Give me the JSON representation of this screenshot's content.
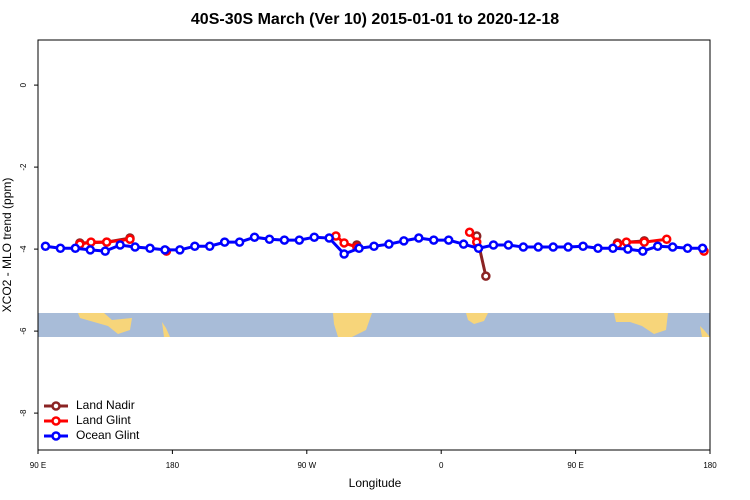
{
  "chart_data": {
    "type": "line",
    "title": "40S-30S March (Ver 10)   2015-01-01 to 2020-12-18",
    "xlabel": "Longitude",
    "ylabel": "XCO2 - MLO trend (ppm)",
    "xlim": [
      90,
      540
    ],
    "xticks": [
      {
        "value": 90,
        "label": "90 E"
      },
      {
        "value": 180,
        "label": "180"
      },
      {
        "value": 270,
        "label": "90 W"
      },
      {
        "value": 360,
        "label": "0"
      },
      {
        "value": 450,
        "label": "90 E"
      },
      {
        "value": 540,
        "label": "180"
      }
    ],
    "ylim": [
      -8.9,
      1.1
    ],
    "yticks": [
      0,
      -2,
      -4,
      -6,
      -8
    ],
    "legend": "bottom-left",
    "series": [
      {
        "name": "Land Nadir",
        "color": "#8b2323",
        "x": [
          118,
          136,
          151.6,
          null,
          303.5,
          null,
          383.8,
          389.9,
          null,
          478,
          496
        ],
        "values": [
          -3.85,
          -3.83,
          -3.73,
          null,
          -3.9,
          null,
          -3.68,
          -4.66,
          null,
          -3.85,
          -3.8
        ]
      },
      {
        "name": "Land Glint",
        "color": "#ff0000",
        "x": [
          118,
          125.5,
          136,
          151.6,
          null,
          176,
          null,
          289.5,
          295,
          303.5,
          null,
          379,
          383.8,
          null,
          478,
          484,
          496,
          511,
          null,
          536
        ],
        "values": [
          -3.88,
          -3.83,
          -3.83,
          -3.76,
          null,
          -4.05,
          null,
          -3.68,
          -3.85,
          -3.95,
          null,
          -3.59,
          -3.83,
          null,
          -3.88,
          -3.83,
          -3.83,
          -3.76,
          null,
          -4.05
        ]
      },
      {
        "name": "Ocean Glint",
        "color": "#0000ff",
        "x": [
          95,
          105,
          115,
          125,
          135,
          145,
          155,
          165,
          175,
          185,
          195,
          205,
          215,
          225,
          235,
          245,
          255,
          265,
          275,
          285,
          295,
          305,
          315,
          325,
          335,
          345,
          355,
          365,
          375,
          385,
          395,
          405,
          415,
          425,
          435,
          445,
          455,
          465,
          475,
          485,
          495,
          505,
          515,
          525,
          535
        ],
        "values": [
          -3.93,
          -3.98,
          -3.98,
          -4.02,
          -4.05,
          -3.9,
          -3.95,
          -3.98,
          -4.02,
          -4.02,
          -3.93,
          -3.93,
          -3.83,
          -3.83,
          -3.71,
          -3.76,
          -3.78,
          -3.78,
          -3.71,
          -3.73,
          -4.12,
          -3.98,
          -3.93,
          -3.88,
          -3.8,
          -3.73,
          -3.78,
          -3.78,
          -3.88,
          -3.98,
          -3.9,
          -3.9,
          -3.95,
          -3.95,
          -3.95,
          -3.95,
          -3.93,
          -3.98,
          -3.98,
          -4.0,
          -4.05,
          -3.93,
          -3.95,
          -3.98,
          -3.98
        ]
      }
    ]
  }
}
